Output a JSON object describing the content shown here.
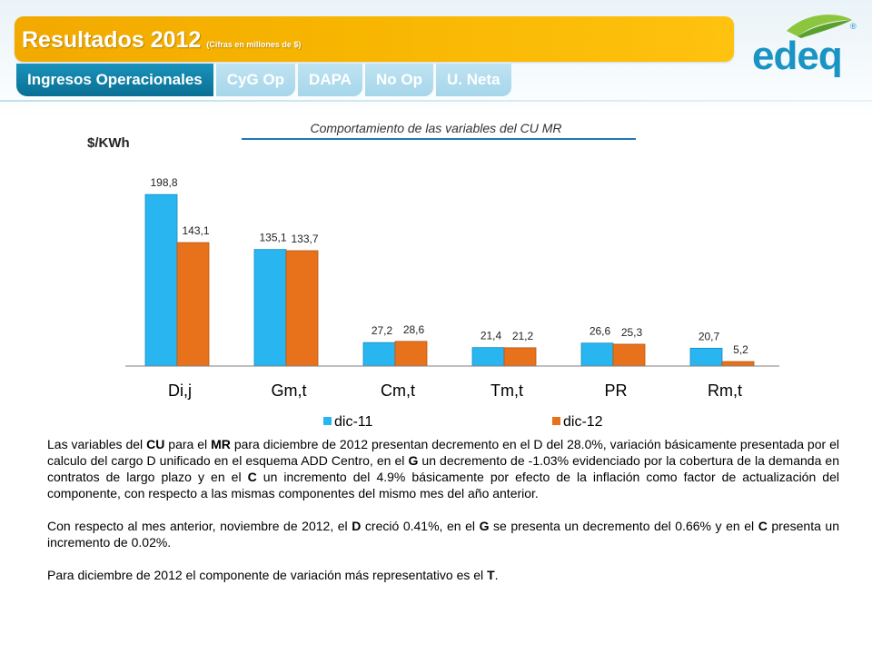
{
  "header": {
    "title": "Resultados 2012",
    "subtitle": "(Cifras en millones de $)",
    "logo_text": "edeq",
    "logo_mark": "®"
  },
  "tabs": [
    {
      "label": "Ingresos Operacionales",
      "active": true
    },
    {
      "label": "CyG Op",
      "active": false
    },
    {
      "label": "DAPA",
      "active": false
    },
    {
      "label": "No Op",
      "active": false
    },
    {
      "label": "U. Neta",
      "active": false
    }
  ],
  "colors": {
    "accent_blue": "#0a6f93",
    "series_1": "#29b6f0",
    "series_2": "#e8711c",
    "title_bar": "#f7b500"
  },
  "chart_data": {
    "type": "bar",
    "title": "Comportamiento de las variables del CU MR",
    "ylabel": "$/KWh",
    "xlabel": "",
    "categories": [
      "Di,j",
      "Gm,t",
      "Cm,t",
      "Tm,t",
      "PR",
      "Rm,t"
    ],
    "series": [
      {
        "name": "dic-11",
        "values": [
          198.8,
          135.1,
          27.2,
          21.4,
          26.6,
          20.7
        ],
        "labels": [
          "198,8",
          "135,1",
          "27,2",
          "21,4",
          "26,6",
          "20,7"
        ]
      },
      {
        "name": "dic-12",
        "values": [
          143.1,
          133.7,
          28.6,
          21.2,
          25.3,
          5.2
        ],
        "labels": [
          "143,1",
          "133,7",
          "28,6",
          "21,2",
          "25,3",
          "5,2"
        ]
      }
    ],
    "ylim": [
      0,
      200
    ],
    "grid": false,
    "legend": "bottom"
  },
  "text": {
    "p1": [
      {
        "t": "Las variables del "
      },
      {
        "t": "CU",
        "b": true
      },
      {
        "t": " para el "
      },
      {
        "t": "MR",
        "b": true
      },
      {
        "t": " para diciembre de 2012 presentan decremento en el D del 28.0%, variación básicamente presentada por el calculo del cargo D unificado en el esquema ADD Centro, en el "
      },
      {
        "t": "G",
        "b": true
      },
      {
        "t": " un decremento de -1.03% evidenciado por la cobertura de la demanda en contratos de largo plazo y en el "
      },
      {
        "t": "C",
        "b": true
      },
      {
        "t": " un incremento del 4.9% básicamente por efecto de la inflación como factor de actualización del componente, con respecto a las mismas componentes del mismo mes del año anterior."
      }
    ],
    "p2": [
      {
        "t": "Con respecto al mes anterior, noviembre de 2012, el "
      },
      {
        "t": "D",
        "b": true
      },
      {
        "t": " creció 0.41%, en el "
      },
      {
        "t": "G",
        "b": true
      },
      {
        "t": "  se presenta un decremento del 0.66% y en el "
      },
      {
        "t": "C",
        "b": true
      },
      {
        "t": " presenta un incremento de 0.02%."
      }
    ],
    "p3": [
      {
        "t": "Para diciembre de 2012 el componente de variación más representativo es el "
      },
      {
        "t": "T",
        "b": true
      },
      {
        "t": "."
      }
    ]
  }
}
